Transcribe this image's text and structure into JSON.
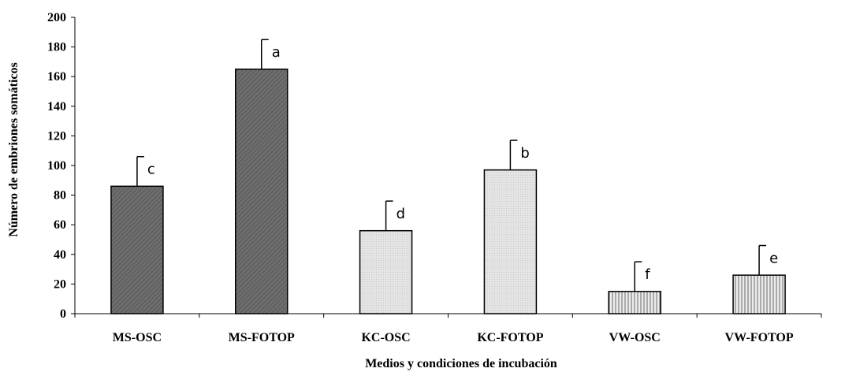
{
  "chart_data": {
    "type": "bar",
    "categories": [
      "MS-OSC",
      "MS-FOTOP",
      "KC-OSC",
      "KC-FOTOP",
      "VW-OSC",
      "VW-FOTOP"
    ],
    "values": [
      86,
      165,
      56,
      97,
      15,
      26
    ],
    "error_plus": [
      20,
      20,
      20,
      20,
      20,
      20
    ],
    "letters": [
      "c",
      "a",
      "d",
      "b",
      "f",
      "e"
    ],
    "bar_fill": [
      "dark-diagonal",
      "dark-diagonal",
      "light-dotted",
      "light-dotted",
      "vertical-stripes",
      "vertical-stripes"
    ],
    "colors": {
      "dark": "#666666",
      "light": "#e0e0e0",
      "stripe": "#b0b0b0"
    },
    "title": "",
    "xlabel": "Medios y condiciones de incubación",
    "ylabel": "Número de embriones somáticos",
    "ylim": [
      0,
      200
    ],
    "yticks": [
      "0",
      "20",
      "40",
      "60",
      "80",
      "100",
      "120",
      "140",
      "160",
      "180",
      "200"
    ],
    "grid": false,
    "legend": "none"
  }
}
